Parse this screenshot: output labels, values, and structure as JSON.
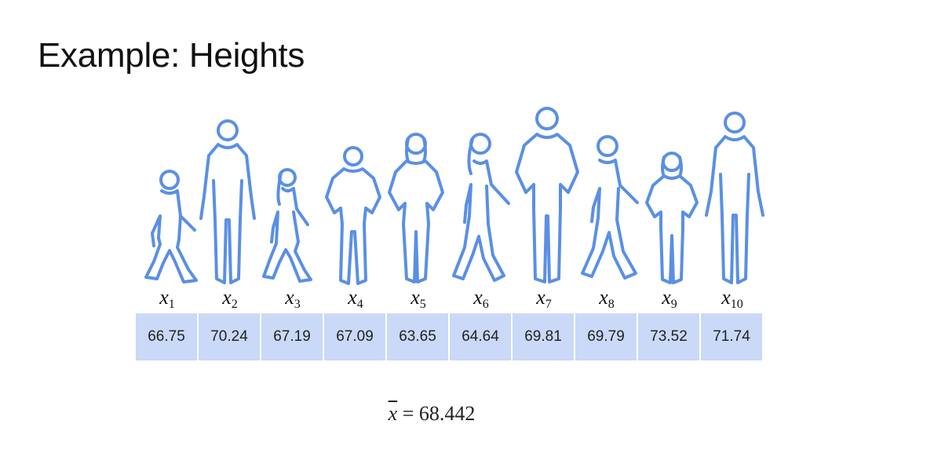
{
  "title": "Example: Heights",
  "people": [
    {
      "symbol": "x",
      "index": "1",
      "height": "66.75"
    },
    {
      "symbol": "x",
      "index": "2",
      "height": "70.24"
    },
    {
      "symbol": "x",
      "index": "3",
      "height": "67.19"
    },
    {
      "symbol": "x",
      "index": "4",
      "height": "67.09"
    },
    {
      "symbol": "x",
      "index": "5",
      "height": "63.65"
    },
    {
      "symbol": "x",
      "index": "6",
      "height": "64.64"
    },
    {
      "symbol": "x",
      "index": "7",
      "height": "69.81"
    },
    {
      "symbol": "x",
      "index": "8",
      "height": "69.79"
    },
    {
      "symbol": "x",
      "index": "9",
      "height": "73.52"
    },
    {
      "symbol": "x",
      "index": "10",
      "height": "71.74"
    }
  ],
  "mean": {
    "symbol": "x",
    "equals": "=",
    "value": "68.442"
  },
  "colors": {
    "silhouette_outline": "#5a8fe6",
    "cell_fill": "#c9d9f7"
  }
}
